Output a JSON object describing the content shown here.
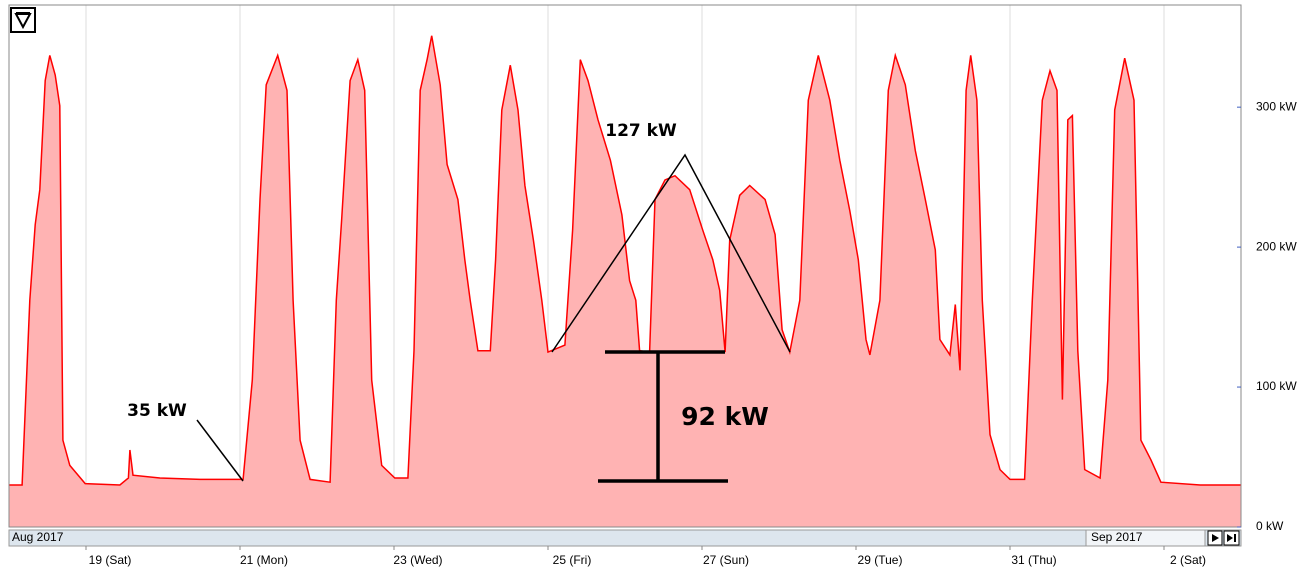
{
  "chart_data": {
    "type": "area",
    "x": [
      18.0,
      18.17,
      18.27,
      18.34,
      18.4,
      18.47,
      18.53,
      18.6,
      18.66,
      18.7,
      18.79,
      18.99,
      19.44,
      19.55,
      19.57,
      19.61,
      19.96,
      20.48,
      21.04,
      21.16,
      21.26,
      21.34,
      21.49,
      21.61,
      21.69,
      21.78,
      21.91,
      22.17,
      22.25,
      22.32,
      22.43,
      22.53,
      22.62,
      22.71,
      22.84,
      23.01,
      23.18,
      23.26,
      23.34,
      23.43,
      23.49,
      23.6,
      23.69,
      23.83,
      23.92,
      23.99,
      24.09,
      24.25,
      24.32,
      24.4,
      24.51,
      24.61,
      24.7,
      24.81,
      24.92,
      25.0,
      25.22,
      25.32,
      25.42,
      25.52,
      25.65,
      25.81,
      25.96,
      26.06,
      26.14,
      26.19,
      26.32,
      26.39,
      26.52,
      26.65,
      26.84,
      27.01,
      27.14,
      27.23,
      27.3,
      27.36,
      27.49,
      27.62,
      27.82,
      27.95,
      28.04,
      28.14,
      28.27,
      28.38,
      28.51,
      28.66,
      28.79,
      28.92,
      29.03,
      29.13,
      29.18,
      29.31,
      29.42,
      29.51,
      29.64,
      29.77,
      29.9,
      30.03,
      30.09,
      30.22,
      30.29,
      30.35,
      30.43,
      30.49,
      30.57,
      30.64,
      30.74,
      30.87,
      31.0,
      31.19,
      31.29,
      31.42,
      31.52,
      31.61,
      31.68,
      31.75,
      31.81,
      31.88,
      31.97,
      32.17,
      32.27,
      32.36,
      32.49,
      32.61,
      32.7,
      32.83,
      32.96,
      33.47,
      34.0
    ],
    "values": [
      30,
      30,
      162,
      216,
      241,
      319,
      337,
      323,
      301,
      62,
      44,
      31,
      30,
      35,
      55,
      37,
      35,
      34,
      34,
      105,
      234,
      316,
      337,
      312,
      162,
      62,
      34,
      32,
      162,
      219,
      319,
      334,
      312,
      105,
      44,
      35,
      35,
      126,
      312,
      334,
      351,
      316,
      259,
      234,
      191,
      162,
      126,
      126,
      191,
      298,
      330,
      298,
      244,
      205,
      162,
      125,
      130,
      212,
      334,
      319,
      291,
      262,
      223,
      176,
      162,
      126,
      125,
      234,
      248,
      251,
      241,
      212,
      191,
      169,
      125,
      205,
      237,
      244,
      234,
      209,
      141,
      125,
      162,
      305,
      337,
      305,
      262,
      226,
      191,
      134,
      123,
      162,
      312,
      337,
      316,
      269,
      234,
      198,
      134,
      123,
      159,
      112,
      312,
      337,
      305,
      162,
      66,
      41,
      34,
      34,
      162,
      305,
      326,
      312,
      91,
      291,
      294,
      126,
      41,
      35,
      105,
      298,
      335,
      305,
      62,
      48,
      32,
      30,
      30
    ],
    "color": "#ff0000",
    "fill": "#ffb3b3",
    "xlim": [
      18,
      34
    ],
    "xticks": [
      {
        "value": 19,
        "label": "19 (Sat)"
      },
      {
        "value": 21,
        "label": "21 (Mon)"
      },
      {
        "value": 23,
        "label": "23 (Wed)"
      },
      {
        "value": 25,
        "label": "25 (Fri)"
      },
      {
        "value": 27,
        "label": "27 (Sun)"
      },
      {
        "value": 29,
        "label": "29 (Tue)"
      },
      {
        "value": 31,
        "label": "31 (Thu)"
      },
      {
        "value": 33,
        "label": "2 (Sat)"
      }
    ],
    "ylim": [
      0,
      373
    ],
    "yticks": [
      {
        "value": 0,
        "label": "0 kW"
      },
      {
        "value": 100,
        "label": "100 kW"
      },
      {
        "value": 200,
        "label": "200 kW"
      },
      {
        "value": 300,
        "label": "300 kW"
      }
    ],
    "periods": [
      "Aug 2017",
      "Sep 2017"
    ],
    "grid": "x",
    "annotations": [
      "35 kW",
      "127 kW",
      "92 kW"
    ]
  }
}
